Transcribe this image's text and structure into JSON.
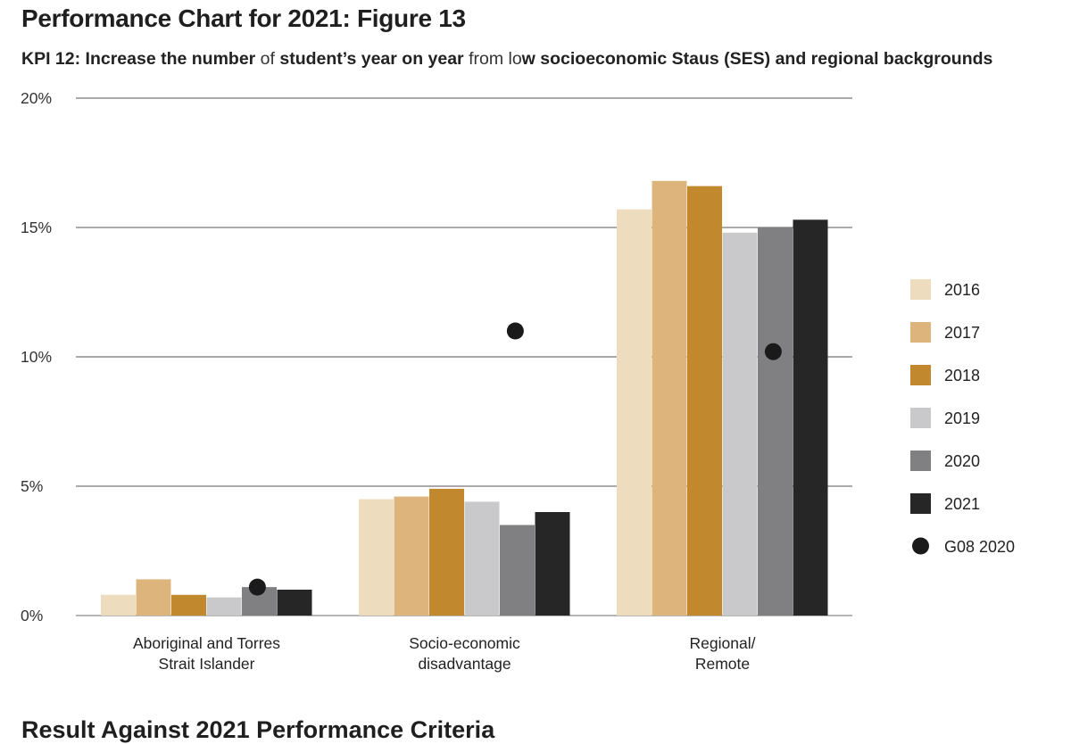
{
  "title": "Performance Chart for 2021: Figure 13",
  "subtitle": {
    "p1": "KPI 12: Increase the number",
    "p2": " of ",
    "p3": "student’s year on year",
    "p4": " from lo",
    "p5": "w socioeconomic Staus (SES) and regional backgrounds"
  },
  "footer_heading": "Result Against 2021 Performance Criteria",
  "chart_data": {
    "type": "bar",
    "categories": [
      [
        "Aboriginal and Torres",
        "Strait Islander"
      ],
      [
        "Socio-economic",
        "disadvantage"
      ],
      [
        "Regional/",
        "Remote"
      ]
    ],
    "series": [
      {
        "name": "2016",
        "color": "#EEDCBF",
        "values": [
          0.8,
          4.5,
          15.7
        ]
      },
      {
        "name": "2017",
        "color": "#DCB47C",
        "values": [
          1.4,
          4.6,
          16.8
        ]
      },
      {
        "name": "2018",
        "color": "#C2882D",
        "values": [
          0.8,
          4.9,
          16.6
        ]
      },
      {
        "name": "2019",
        "color": "#C9C9CB",
        "values": [
          0.7,
          4.4,
          14.8
        ]
      },
      {
        "name": "2020",
        "color": "#808083",
        "values": [
          1.1,
          3.5,
          15.0
        ]
      },
      {
        "name": "2021",
        "color": "#262626",
        "values": [
          1.0,
          4.0,
          15.3
        ]
      }
    ],
    "markers": {
      "name": "G08 2020",
      "color": "#1a1a1a",
      "values": [
        1.1,
        11.0,
        10.2
      ]
    },
    "ylim": [
      0,
      20
    ],
    "yticks": [
      "0%",
      "5%",
      "10%",
      "15%",
      "20%"
    ],
    "grid": true,
    "legend": "right"
  }
}
